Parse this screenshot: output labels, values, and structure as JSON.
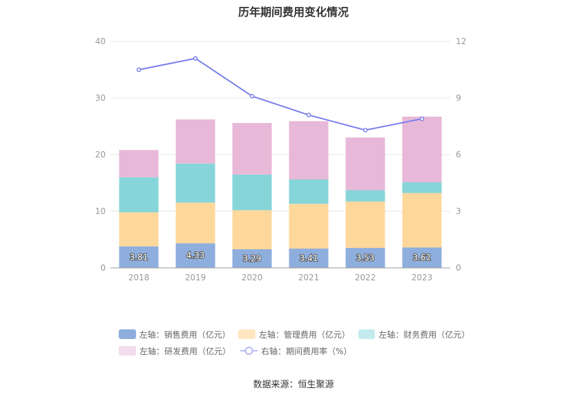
{
  "title": "历年期间费用变化情况",
  "source": "数据来源：恒生聚源",
  "chart_data": {
    "type": "bar",
    "stacked": true,
    "title": "历年期间费用变化情况",
    "categories": [
      "2018",
      "2019",
      "2020",
      "2021",
      "2022",
      "2023"
    ],
    "y_left": {
      "min": 0,
      "max": 40,
      "ticks": [
        "0",
        "10",
        "20",
        "30",
        "40"
      ]
    },
    "y_right": {
      "min": 0,
      "max": 12,
      "ticks": [
        "0",
        "3",
        "6",
        "9",
        "12"
      ]
    },
    "grid": true,
    "legend_position": "bottom",
    "series": [
      {
        "name": "左轴：销售费用（亿元）",
        "axis": "left",
        "color": "#8eaedd",
        "values": [
          3.81,
          4.33,
          3.29,
          3.41,
          3.53,
          3.62
        ],
        "labels_shown": true
      },
      {
        "name": "左轴：管理费用（亿元）",
        "axis": "left",
        "color": "#fed89b",
        "values": [
          6.0,
          7.2,
          6.9,
          7.9,
          8.2,
          9.6
        ]
      },
      {
        "name": "左轴：财务费用（亿元）",
        "axis": "left",
        "color": "#86d5d9",
        "values": [
          6.2,
          6.9,
          6.3,
          4.3,
          2.0,
          1.9
        ]
      },
      {
        "name": "左轴：研发费用（亿元）",
        "axis": "left",
        "color": "#e8b8d8",
        "values": [
          4.8,
          7.8,
          9.1,
          10.3,
          9.3,
          11.6
        ]
      },
      {
        "name": "右轴：期间费用率（%）",
        "axis": "right",
        "type": "line",
        "color": "#7a7fea",
        "values": [
          10.5,
          11.1,
          9.1,
          8.1,
          7.3,
          7.9
        ]
      }
    ]
  }
}
